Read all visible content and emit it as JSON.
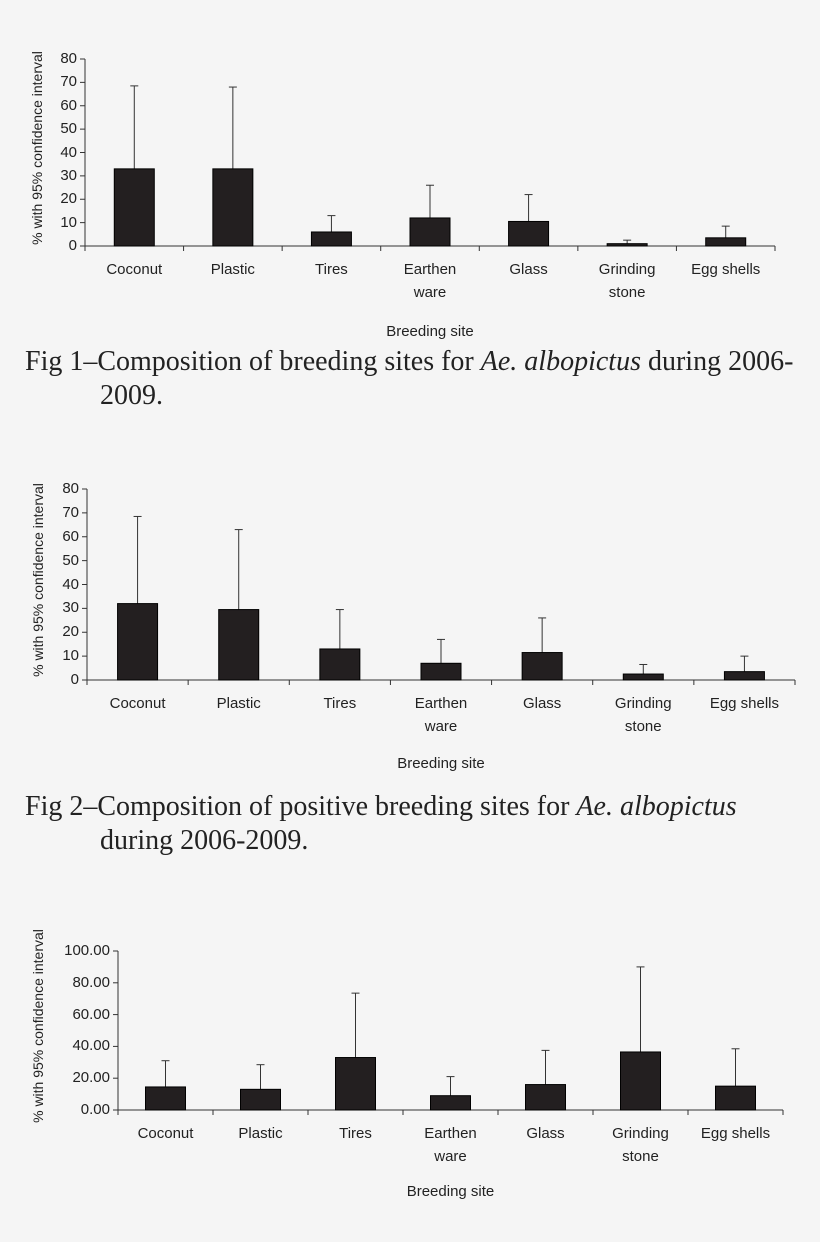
{
  "chart_data": [
    {
      "type": "bar",
      "ylabel": "% with 95% confidence interval",
      "xlabel": "Breeding site",
      "categories": [
        "Coconut",
        "Plastic",
        "Tires",
        "Earthen ware",
        "Glass",
        "Grinding stone",
        "Egg shells"
      ],
      "values": [
        33,
        33,
        6,
        12,
        10.5,
        1,
        3.5
      ],
      "errors": [
        35.5,
        35,
        7,
        14,
        11.5,
        1.5,
        5
      ],
      "color": "#231f20",
      "ylim": [
        0,
        80
      ],
      "yticks": [
        0,
        10,
        20,
        30,
        40,
        50,
        60,
        70,
        80
      ],
      "caption": [
        "Fig 1–Composition of breeding sites for ",
        "Ae. albopictus",
        " during 2006-2009."
      ]
    },
    {
      "type": "bar",
      "ylabel": "% with 95% confidence interval",
      "xlabel": "Breeding site",
      "categories": [
        "Coconut",
        "Plastic",
        "Tires",
        "Earthen ware",
        "Glass",
        "Grinding stone",
        "Egg shells"
      ],
      "values": [
        32,
        29.5,
        13,
        7,
        11.5,
        2.5,
        3.5
      ],
      "errors": [
        36.5,
        33.5,
        16.5,
        10,
        14.5,
        4,
        6.5
      ],
      "color": "#231f20",
      "ylim": [
        0,
        80
      ],
      "yticks": [
        0,
        10,
        20,
        30,
        40,
        50,
        60,
        70,
        80
      ],
      "caption": [
        "Fig 2–Composition of positive breeding sites for ",
        "Ae. albopictus",
        " during 2006-2009."
      ]
    },
    {
      "type": "bar",
      "ylabel": "% with 95% confidence interval",
      "xlabel": "Breeding site",
      "categories": [
        "Coconut",
        "Plastic",
        "Tires",
        "Earthen ware",
        "Glass",
        "Grinding stone",
        "Egg shells"
      ],
      "values": [
        14.5,
        13,
        33,
        9,
        16,
        36.5,
        15
      ],
      "errors": [
        16.5,
        15.5,
        40.5,
        12,
        21.5,
        53.5,
        23.5
      ],
      "color": "#231f20",
      "ylim": [
        0,
        100
      ],
      "yticks": [
        {
          "value": 0,
          "label": "0.00"
        },
        {
          "value": 20,
          "label": "20.00"
        },
        {
          "value": 40,
          "label": "40.00"
        },
        {
          "value": 60,
          "label": "60.00"
        },
        {
          "value": 80,
          "label": "80.00"
        },
        {
          "value": 100,
          "label": "100.00"
        }
      ]
    }
  ]
}
